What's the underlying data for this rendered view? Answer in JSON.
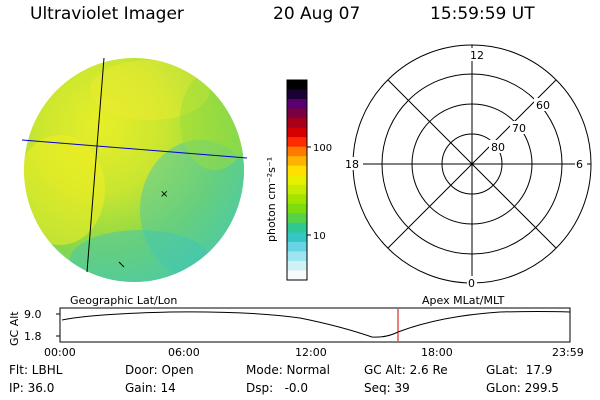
{
  "header": {
    "title": "Ultraviolet Imager",
    "date": "20 Aug 07",
    "time": "15:59:59 UT"
  },
  "colorbar": {
    "label": "photon cm⁻²s⁻¹",
    "ticks": [
      "100",
      "10"
    ],
    "colors": [
      "#000000",
      "#1a0033",
      "#5a006e",
      "#7a0040",
      "#a8001a",
      "#d40000",
      "#ff2a00",
      "#ff7a00",
      "#ffb300",
      "#ffe000",
      "#e8f000",
      "#c8ec00",
      "#a2e400",
      "#7ddc10",
      "#55d24a",
      "#2fc893",
      "#33c6c4",
      "#66d4e2",
      "#9ee6ef",
      "#d0f2f6",
      "#f6fbfc"
    ]
  },
  "polar": {
    "mlt_labels": {
      "top": "12",
      "bottom": "0",
      "left": "18",
      "right": "6"
    },
    "lat_labels": [
      "60",
      "70",
      "80"
    ]
  },
  "alt_panel": {
    "left_label": "Geographic Lat/Lon",
    "right_label": "Apex MLat/MLT",
    "axis_label": "GC Alt",
    "y_ticks": [
      "9.0",
      "1.8"
    ],
    "x_ticks": [
      "00:00",
      "06:00",
      "12:00",
      "18:00",
      "23:59"
    ],
    "marker_color": "#cc0000"
  },
  "info": {
    "flt": "Flt: LBHL",
    "ip": "IP: 36.0",
    "door": "Door: Open",
    "gain": "Gain: 14",
    "mode": "Mode: Normal",
    "dsp": "Dsp:   -0.0",
    "gcalt": "GC Alt: 2.6 Re",
    "seq": "Seq: 39",
    "glat": "GLat:  17.9",
    "glon": "GLon: 299.5"
  }
}
